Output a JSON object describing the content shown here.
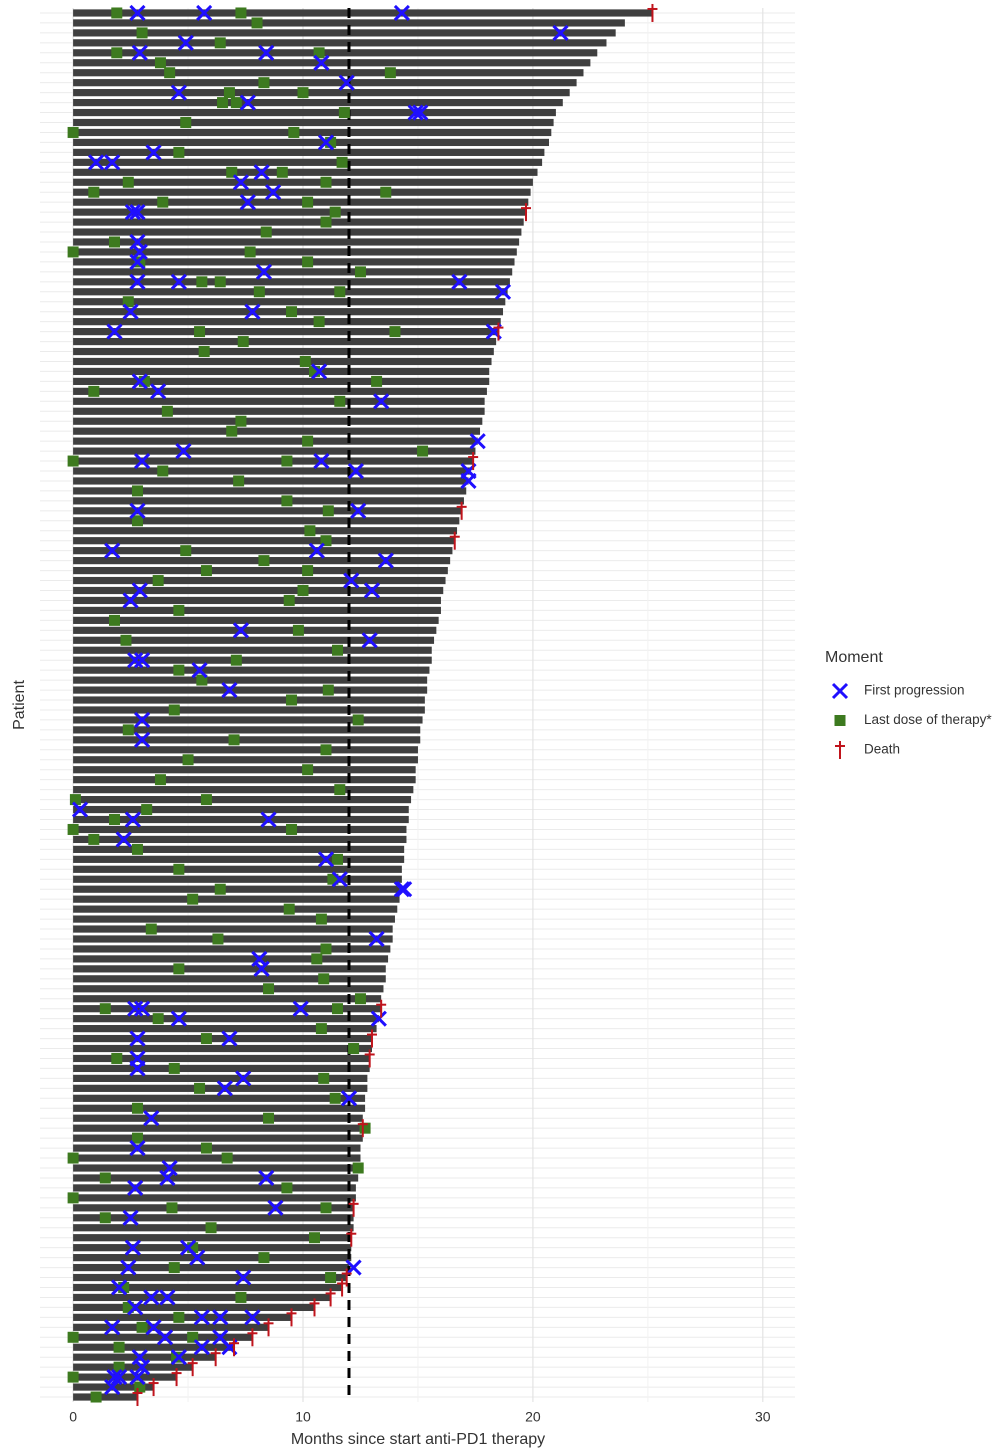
{
  "chart_data": {
    "type": "swimmer",
    "xlabel": "Months since start anti-PD1 therapy",
    "ylabel": "Patient",
    "xlim": [
      -1.44,
      31.4
    ],
    "xticks": [
      0,
      10,
      20,
      30
    ],
    "xminorticks": [
      5,
      15,
      25
    ],
    "reference_line": 12,
    "bar_color": "#3f3f3f",
    "legend_title": "Moment",
    "durations": [
      25.2,
      24.0,
      23.6,
      23.2,
      22.8,
      22.5,
      22.2,
      21.9,
      21.6,
      21.3,
      21.0,
      20.9,
      20.8,
      20.7,
      20.5,
      20.4,
      20.2,
      20.0,
      19.9,
      19.8,
      19.7,
      19.6,
      19.5,
      19.4,
      19.3,
      19.2,
      19.1,
      19.0,
      18.9,
      18.8,
      18.7,
      18.6,
      18.5,
      18.4,
      18.3,
      18.2,
      18.1,
      18.1,
      18.0,
      17.9,
      17.9,
      17.8,
      17.7,
      17.6,
      17.5,
      17.4,
      17.3,
      17.2,
      17.1,
      17.0,
      16.9,
      16.8,
      16.7,
      16.6,
      16.5,
      16.4,
      16.3,
      16.2,
      16.1,
      16.0,
      16.0,
      15.9,
      15.8,
      15.7,
      15.6,
      15.6,
      15.5,
      15.4,
      15.4,
      15.3,
      15.3,
      15.2,
      15.1,
      15.1,
      15.0,
      15.0,
      14.9,
      14.9,
      14.8,
      14.7,
      14.6,
      14.6,
      14.5,
      14.5,
      14.4,
      14.4,
      14.3,
      14.3,
      14.2,
      14.2,
      14.1,
      14.0,
      13.9,
      13.9,
      13.8,
      13.7,
      13.6,
      13.6,
      13.5,
      13.4,
      13.4,
      13.3,
      13.2,
      13.0,
      13.0,
      12.9,
      12.9,
      12.8,
      12.8,
      12.7,
      12.7,
      12.6,
      12.6,
      12.6,
      12.5,
      12.5,
      12.4,
      12.4,
      12.3,
      12.3,
      12.2,
      12.2,
      12.2,
      12.1,
      12.1,
      12.1,
      12.0,
      11.9,
      11.7,
      11.2,
      10.5,
      9.5,
      8.5,
      7.8,
      7.0,
      6.2,
      5.2,
      4.5,
      3.5,
      2.8
    ],
    "series": [
      {
        "name": "First progression",
        "color": "#1f0fff",
        "marker": "x",
        "rows": [
          0,
          0,
          0,
          2,
          3,
          4,
          4,
          5,
          7,
          8,
          9,
          10,
          10,
          13,
          14,
          15,
          15,
          16,
          17,
          18,
          19,
          20,
          20,
          23,
          24,
          25,
          26,
          27,
          27,
          27,
          28,
          30,
          30,
          32,
          32,
          36,
          37,
          38,
          39,
          43,
          44,
          45,
          45,
          46,
          46,
          47,
          50,
          50,
          54,
          54,
          55,
          57,
          58,
          58,
          59,
          62,
          63,
          65,
          65,
          66,
          68,
          71,
          73,
          80,
          81,
          81,
          83,
          85,
          87,
          88,
          88,
          93,
          95,
          96,
          100,
          100,
          100,
          101,
          101,
          103,
          103,
          105,
          106,
          107,
          108,
          109,
          111,
          114,
          116,
          117,
          117,
          118,
          120,
          121,
          124,
          124,
          125,
          126,
          126,
          127,
          128,
          129,
          129,
          130,
          131,
          131,
          132,
          131,
          132,
          133,
          133,
          134,
          134,
          135,
          135,
          136,
          137,
          137,
          137,
          138
        ],
        "values": [
          2.8,
          5.7,
          14.3,
          21.2,
          4.9,
          2.9,
          8.4,
          10.8,
          11.9,
          4.6,
          7.6,
          15.1,
          14.9,
          11.0,
          3.5,
          1.0,
          1.7,
          8.2,
          7.3,
          8.7,
          7.6,
          2.6,
          2.8,
          2.8,
          2.9,
          2.8,
          8.3,
          2.8,
          16.8,
          4.6,
          18.7,
          7.8,
          2.5,
          18.3,
          1.8,
          10.7,
          2.9,
          3.7,
          13.4,
          17.6,
          4.8,
          3.0,
          10.8,
          12.3,
          17.2,
          17.2,
          2.8,
          12.4,
          1.7,
          10.6,
          13.6,
          12.1,
          13.0,
          2.9,
          2.5,
          7.3,
          12.9,
          2.7,
          3.0,
          5.5,
          6.8,
          3.0,
          3.0,
          0.3,
          2.6,
          8.5,
          2.2,
          11.0,
          11.6,
          14.3,
          14.4,
          13.2,
          8.1,
          8.2,
          2.7,
          3.0,
          9.9,
          13.3,
          4.6,
          6.8,
          2.8,
          2.8,
          2.8,
          7.4,
          6.6,
          12.0,
          3.4,
          2.8,
          4.2,
          8.4,
          4.1,
          2.7,
          8.8,
          2.5,
          5.0,
          2.6,
          5.4,
          12.2,
          2.4,
          7.4,
          2.0,
          4.1,
          3.4,
          2.7,
          7.8,
          6.4,
          1.7,
          5.6,
          3.5,
          6.4,
          4.0,
          5.6,
          6.8,
          4.6,
          2.9,
          3.0,
          1.8,
          2.0,
          2.8,
          1.7
        ]
      },
      {
        "name": "Last dose of therapy*",
        "color": "#3d7a1f",
        "marker": "square",
        "rows": [
          0,
          0,
          1,
          2,
          3,
          4,
          4,
          5,
          6,
          6,
          7,
          8,
          8,
          9,
          9,
          10,
          11,
          12,
          12,
          13,
          14,
          15,
          16,
          16,
          17,
          17,
          18,
          18,
          19,
          19,
          20,
          21,
          22,
          23,
          24,
          24,
          25,
          25,
          26,
          27,
          27,
          28,
          28,
          29,
          30,
          31,
          32,
          32,
          33,
          34,
          35,
          36,
          37,
          37,
          38,
          39,
          40,
          41,
          42,
          43,
          44,
          45,
          45,
          46,
          47,
          48,
          49,
          50,
          51,
          52,
          53,
          54,
          55,
          56,
          56,
          57,
          58,
          59,
          60,
          61,
          62,
          63,
          64,
          65,
          66,
          67,
          68,
          69,
          70,
          71,
          72,
          73,
          74,
          75,
          76,
          77,
          78,
          79,
          79,
          80,
          81,
          82,
          82,
          83,
          84,
          85,
          86,
          87,
          88,
          89,
          90,
          91,
          92,
          93,
          94,
          95,
          96,
          97,
          98,
          99,
          100,
          100,
          101,
          102,
          103,
          104,
          105,
          106,
          107,
          108,
          109,
          110,
          111,
          112,
          113,
          114,
          115,
          115,
          116,
          117,
          118,
          119,
          120,
          120,
          121,
          122,
          123,
          124,
          125,
          126,
          127,
          128,
          129,
          130,
          131,
          132,
          133,
          133,
          134,
          135,
          136,
          137,
          138,
          139
        ],
        "values": [
          7.3,
          1.9,
          8.0,
          3.0,
          6.4,
          1.9,
          10.7,
          3.8,
          4.2,
          13.8,
          8.3,
          6.8,
          10.0,
          6.5,
          7.1,
          11.8,
          4.9,
          9.6,
          0.0,
          11.2,
          4.6,
          11.7,
          6.9,
          9.1,
          2.4,
          11.0,
          0.9,
          13.6,
          3.9,
          10.2,
          11.4,
          11.0,
          8.4,
          1.8,
          0.0,
          7.7,
          10.2,
          2.9,
          12.5,
          5.6,
          6.4,
          11.6,
          8.1,
          2.4,
          9.5,
          10.7,
          5.5,
          14.0,
          7.4,
          5.7,
          10.1,
          10.5,
          3.1,
          13.2,
          0.9,
          11.6,
          4.1,
          7.3,
          6.9,
          10.2,
          15.2,
          0.0,
          9.3,
          3.9,
          7.2,
          2.8,
          9.3,
          11.1,
          2.8,
          10.3,
          11.0,
          4.9,
          8.3,
          5.8,
          10.2,
          3.7,
          10.0,
          9.4,
          4.6,
          1.8,
          9.8,
          2.3,
          11.5,
          7.1,
          4.6,
          5.6,
          11.1,
          9.5,
          4.4,
          12.4,
          2.4,
          7.0,
          11.0,
          5.0,
          10.2,
          3.8,
          11.6,
          0.1,
          5.8,
          3.2,
          1.8,
          0.0,
          9.5,
          0.9,
          2.8,
          11.5,
          4.6,
          11.3,
          6.4,
          5.2,
          9.4,
          10.8,
          3.4,
          6.3,
          11.0,
          10.6,
          4.6,
          10.9,
          8.5,
          12.5,
          1.4,
          11.5,
          3.7,
          10.8,
          5.8,
          12.2,
          1.9,
          4.4,
          10.9,
          5.5,
          11.4,
          2.8,
          8.5,
          12.7,
          2.8,
          5.8,
          0.0,
          6.7,
          12.4,
          1.4,
          9.3,
          0.0,
          4.3,
          11.0,
          1.4,
          6.0,
          10.5,
          5.2,
          8.3,
          4.4,
          11.2,
          2.2,
          7.3,
          2.4,
          4.6,
          3.0,
          0.0,
          5.2,
          2.0,
          4.5,
          2.0,
          0.0,
          2.9,
          1.0
        ]
      },
      {
        "name": "Death",
        "color": "#c0141c",
        "marker": "dagger",
        "rows": [
          0,
          20,
          32,
          45,
          50,
          53,
          100,
          103,
          105,
          112,
          120,
          123,
          127,
          128,
          129,
          130,
          131,
          132,
          133,
          134,
          135,
          136,
          137,
          138,
          139
        ],
        "values": [
          25.2,
          19.7,
          18.5,
          17.4,
          16.9,
          16.6,
          13.4,
          13.0,
          12.9,
          12.6,
          12.2,
          12.1,
          11.9,
          11.7,
          11.2,
          10.5,
          9.5,
          8.5,
          7.8,
          7.0,
          6.2,
          5.2,
          4.5,
          3.5,
          2.8
        ]
      }
    ]
  }
}
